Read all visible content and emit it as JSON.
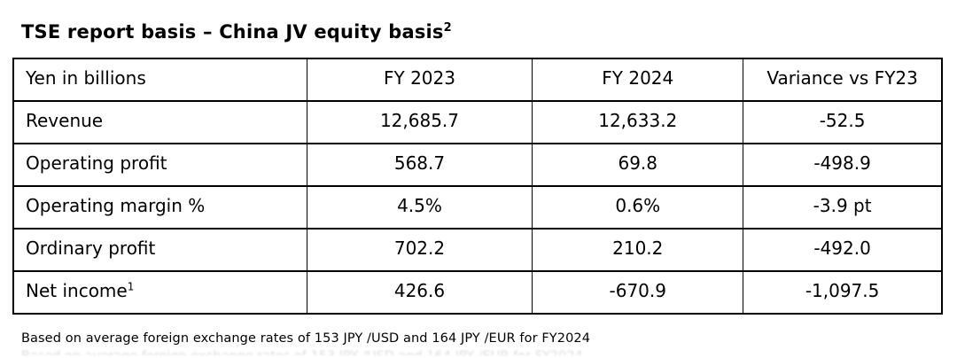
{
  "title": {
    "text": "TSE report basis – China JV equity basis",
    "sup": "2"
  },
  "table": {
    "headers": [
      "Yen in billions",
      "FY 2023",
      "FY 2024",
      "Variance vs FY23"
    ],
    "rows": [
      {
        "label": "Revenue",
        "sup": "",
        "fy2023": "12,685.7",
        "fy2024": "12,633.2",
        "variance": "-52.5"
      },
      {
        "label": "Operating profit",
        "sup": "",
        "fy2023": "568.7",
        "fy2024": "69.8",
        "variance": "-498.9"
      },
      {
        "label": "Operating margin %",
        "sup": "",
        "fy2023": "4.5%",
        "fy2024": "0.6%",
        "variance": "-3.9 pt"
      },
      {
        "label": "Ordinary profit",
        "sup": "",
        "fy2023": "702.2",
        "fy2024": "210.2",
        "variance": "-492.0"
      },
      {
        "label": "Net income",
        "sup": "1",
        "fy2023": "426.6",
        "fy2024": "-670.9",
        "variance": "-1,097.5"
      }
    ]
  },
  "footnote": "Based on average foreign exchange rates of 153 JPY /USD and 164 JPY /EUR for FY2024",
  "colors": {
    "text": "#000000",
    "border": "#000000",
    "background": "#ffffff"
  }
}
